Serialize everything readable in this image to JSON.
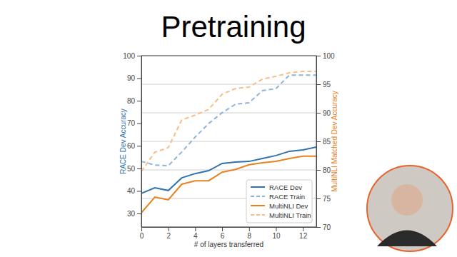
{
  "chart_data": {
    "type": "line",
    "title": "Pretraining",
    "x_label": "# of layers transferred",
    "y_label": "RACE Dev Accuracy",
    "y2_label": "MultiNLI Matched Dev Accuracy",
    "x": [
      0,
      1,
      2,
      3,
      4,
      5,
      6,
      7,
      8,
      9,
      10,
      11,
      12,
      13
    ],
    "xlim": [
      0,
      13
    ],
    "xticks": [
      0,
      2,
      4,
      6,
      8,
      10,
      12
    ],
    "ylim": [
      24,
      100
    ],
    "yticks": [
      30,
      40,
      50,
      60,
      70,
      80,
      90,
      100
    ],
    "y2lim": [
      70,
      100
    ],
    "y2ticks": [
      70,
      75,
      80,
      85,
      90,
      95,
      100
    ],
    "grid": true,
    "legend": "lower right",
    "series": [
      {
        "name": "RACE Dev",
        "color": "#2f72b0",
        "line_style": "solid",
        "values": [
          38.9,
          41.4,
          40.2,
          45.8,
          47.7,
          49.0,
          52.2,
          52.8,
          53.1,
          54.4,
          55.7,
          57.6,
          58.2,
          59.5
        ]
      },
      {
        "name": "RACE Train",
        "color": "#8db4e0",
        "line_style": "dashed",
        "values": [
          53.1,
          51.5,
          51.2,
          57.3,
          63.9,
          69.9,
          74.7,
          78.5,
          79.1,
          84.5,
          85.4,
          91.4,
          91.4,
          91.4
        ]
      },
      {
        "name": "MultiNLI Dev",
        "color": "#e8821e",
        "line_style": "solid",
        "axis": "y2",
        "values": [
          72.5,
          75.25,
          74.75,
          77.5,
          78.1,
          78.1,
          79.6,
          80.1,
          80.9,
          81.25,
          81.5,
          82.0,
          82.4,
          82.4
        ]
      },
      {
        "name": "MultiNLI Train",
        "color": "#f8be88",
        "line_style": "dashed",
        "axis": "y2",
        "values": [
          79.75,
          83.1,
          83.9,
          88.75,
          89.6,
          90.6,
          93.25,
          94.25,
          94.5,
          95.9,
          96.4,
          97.0,
          97.25,
          97.25
        ]
      }
    ]
  }
}
